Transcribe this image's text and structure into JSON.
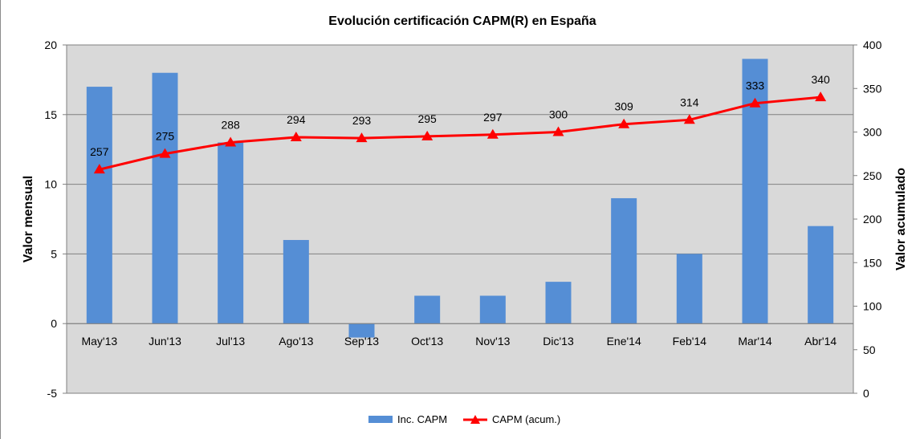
{
  "chart_data": {
    "type": "bar",
    "title": "Evolución certificación CAPM(R) en España",
    "categories": [
      "May'13",
      "Jun'13",
      "Jul'13",
      "Ago'13",
      "Sep'13",
      "Oct'13",
      "Nov'13",
      "Dic'13",
      "Ene'14",
      "Feb'14",
      "Mar'14",
      "Abr'14"
    ],
    "series": [
      {
        "name": "Inc. CAPM",
        "type": "bar",
        "axis": "left",
        "color": "#558ed5",
        "values": [
          17,
          18,
          13,
          6,
          -1,
          2,
          2,
          3,
          9,
          5,
          19,
          7
        ]
      },
      {
        "name": "CAPM (acum.)",
        "type": "line",
        "axis": "right",
        "color": "#ff0000",
        "marker": "triangle",
        "values": [
          257,
          275,
          288,
          294,
          293,
          295,
          297,
          300,
          309,
          314,
          333,
          340
        ],
        "data_labels": [
          "257",
          "275",
          "288",
          "294",
          "293",
          "295",
          "297",
          "300",
          "309",
          "314",
          "333",
          "340"
        ]
      }
    ],
    "ylabel": "Valor mensual",
    "ylabel_right": "Valor acumulado",
    "ylim": [
      -5,
      20
    ],
    "yticks": [
      "-5",
      "0",
      "5",
      "10",
      "15",
      "20"
    ],
    "ylim_right": [
      0,
      400
    ],
    "yticks_right": [
      "0",
      "50",
      "100",
      "150",
      "200",
      "250",
      "300",
      "350",
      "400"
    ],
    "grid": true,
    "legend": "bottom",
    "plot_background": "#d9d9d9"
  }
}
